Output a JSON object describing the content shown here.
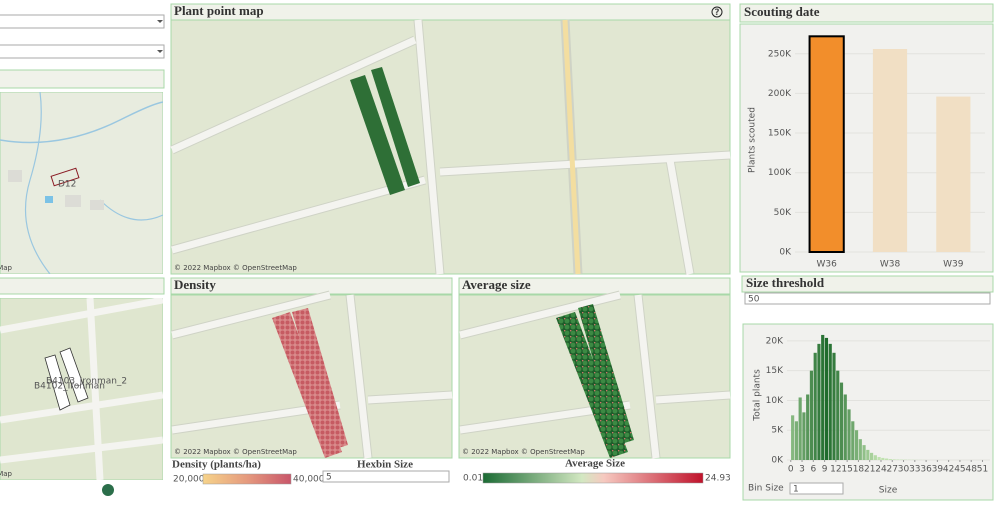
{
  "left_panel": {
    "map_labels": [
      "D12",
      "B4103_Ironman_2",
      "B4102_Ironman"
    ],
    "attribution": "© OpenStreetMap"
  },
  "plant_map": {
    "title": "Plant point map",
    "help_icon": "?",
    "attribution": "© 2022 Mapbox © OpenStreetMap"
  },
  "density": {
    "title": "Density",
    "attribution": "© 2022 Mapbox © OpenStreetMap",
    "legend_title": "Density (plants/ha)",
    "legend_min": "20,000",
    "legend_max": "40,000",
    "hexbin_label": "Hexbin Size",
    "hexbin_value": "5"
  },
  "average_size": {
    "title": "Average size",
    "attribution": "© 2022 Mapbox © OpenStreetMap",
    "legend_title": "Average Size",
    "legend_min": "0.01",
    "legend_max": "24.93"
  },
  "scouting_date": {
    "title": "Scouting date",
    "chart_data": {
      "type": "bar",
      "y_label": "Plants scouted",
      "categories": [
        "W36",
        "W38",
        "W39"
      ],
      "values": [
        272000,
        256000,
        196000
      ],
      "colors": [
        "#f28e2b",
        "#f1dfc4",
        "#f1dfc4"
      ],
      "selected": "W36",
      "ylim": [
        0,
        285000
      ],
      "yticks": [
        {
          "value": 0,
          "label": "0K"
        },
        {
          "value": 50000,
          "label": "50K"
        },
        {
          "value": 100000,
          "label": "100K"
        },
        {
          "value": 150000,
          "label": "150K"
        },
        {
          "value": 200000,
          "label": "200K"
        },
        {
          "value": 250000,
          "label": "250K"
        }
      ]
    }
  },
  "size_threshold": {
    "title": "Size threshold",
    "input_value": "50",
    "bin_size_label": "Bin Size",
    "bin_size_value": "1",
    "chart_data": {
      "type": "histogram",
      "y_label": "Total plants",
      "x_label": "Size",
      "bins": [
        0,
        1,
        2,
        3,
        4,
        5,
        6,
        7,
        8,
        9,
        10,
        11,
        12,
        13,
        14,
        15,
        16,
        17,
        18,
        19,
        20,
        21,
        22,
        23,
        24,
        25,
        26,
        27,
        28,
        29,
        30,
        31,
        32,
        33,
        34,
        35,
        36
      ],
      "counts": [
        7500,
        6500,
        10500,
        8000,
        11000,
        15000,
        18000,
        19500,
        21000,
        20500,
        19500,
        18000,
        15000,
        13000,
        11000,
        8500,
        6500,
        5000,
        3500,
        2500,
        1700,
        1200,
        800,
        500,
        350,
        250,
        150,
        100,
        80,
        60,
        50,
        40,
        30,
        20,
        15,
        10
      ],
      "color_start": "#1f6b2c",
      "color_end": "#bfe2ae",
      "xlim": [
        -1,
        53
      ],
      "xticks": [
        0,
        3,
        6,
        9,
        12,
        15,
        18,
        21,
        24,
        27,
        30,
        33,
        36,
        39,
        42,
        45,
        48,
        51
      ],
      "ylim": [
        0,
        22500
      ],
      "yticks": [
        {
          "value": 0,
          "label": "0K"
        },
        {
          "value": 5000,
          "label": "5K"
        },
        {
          "value": 10000,
          "label": "10K"
        },
        {
          "value": 15000,
          "label": "15K"
        },
        {
          "value": 20000,
          "label": "20K"
        }
      ]
    }
  }
}
